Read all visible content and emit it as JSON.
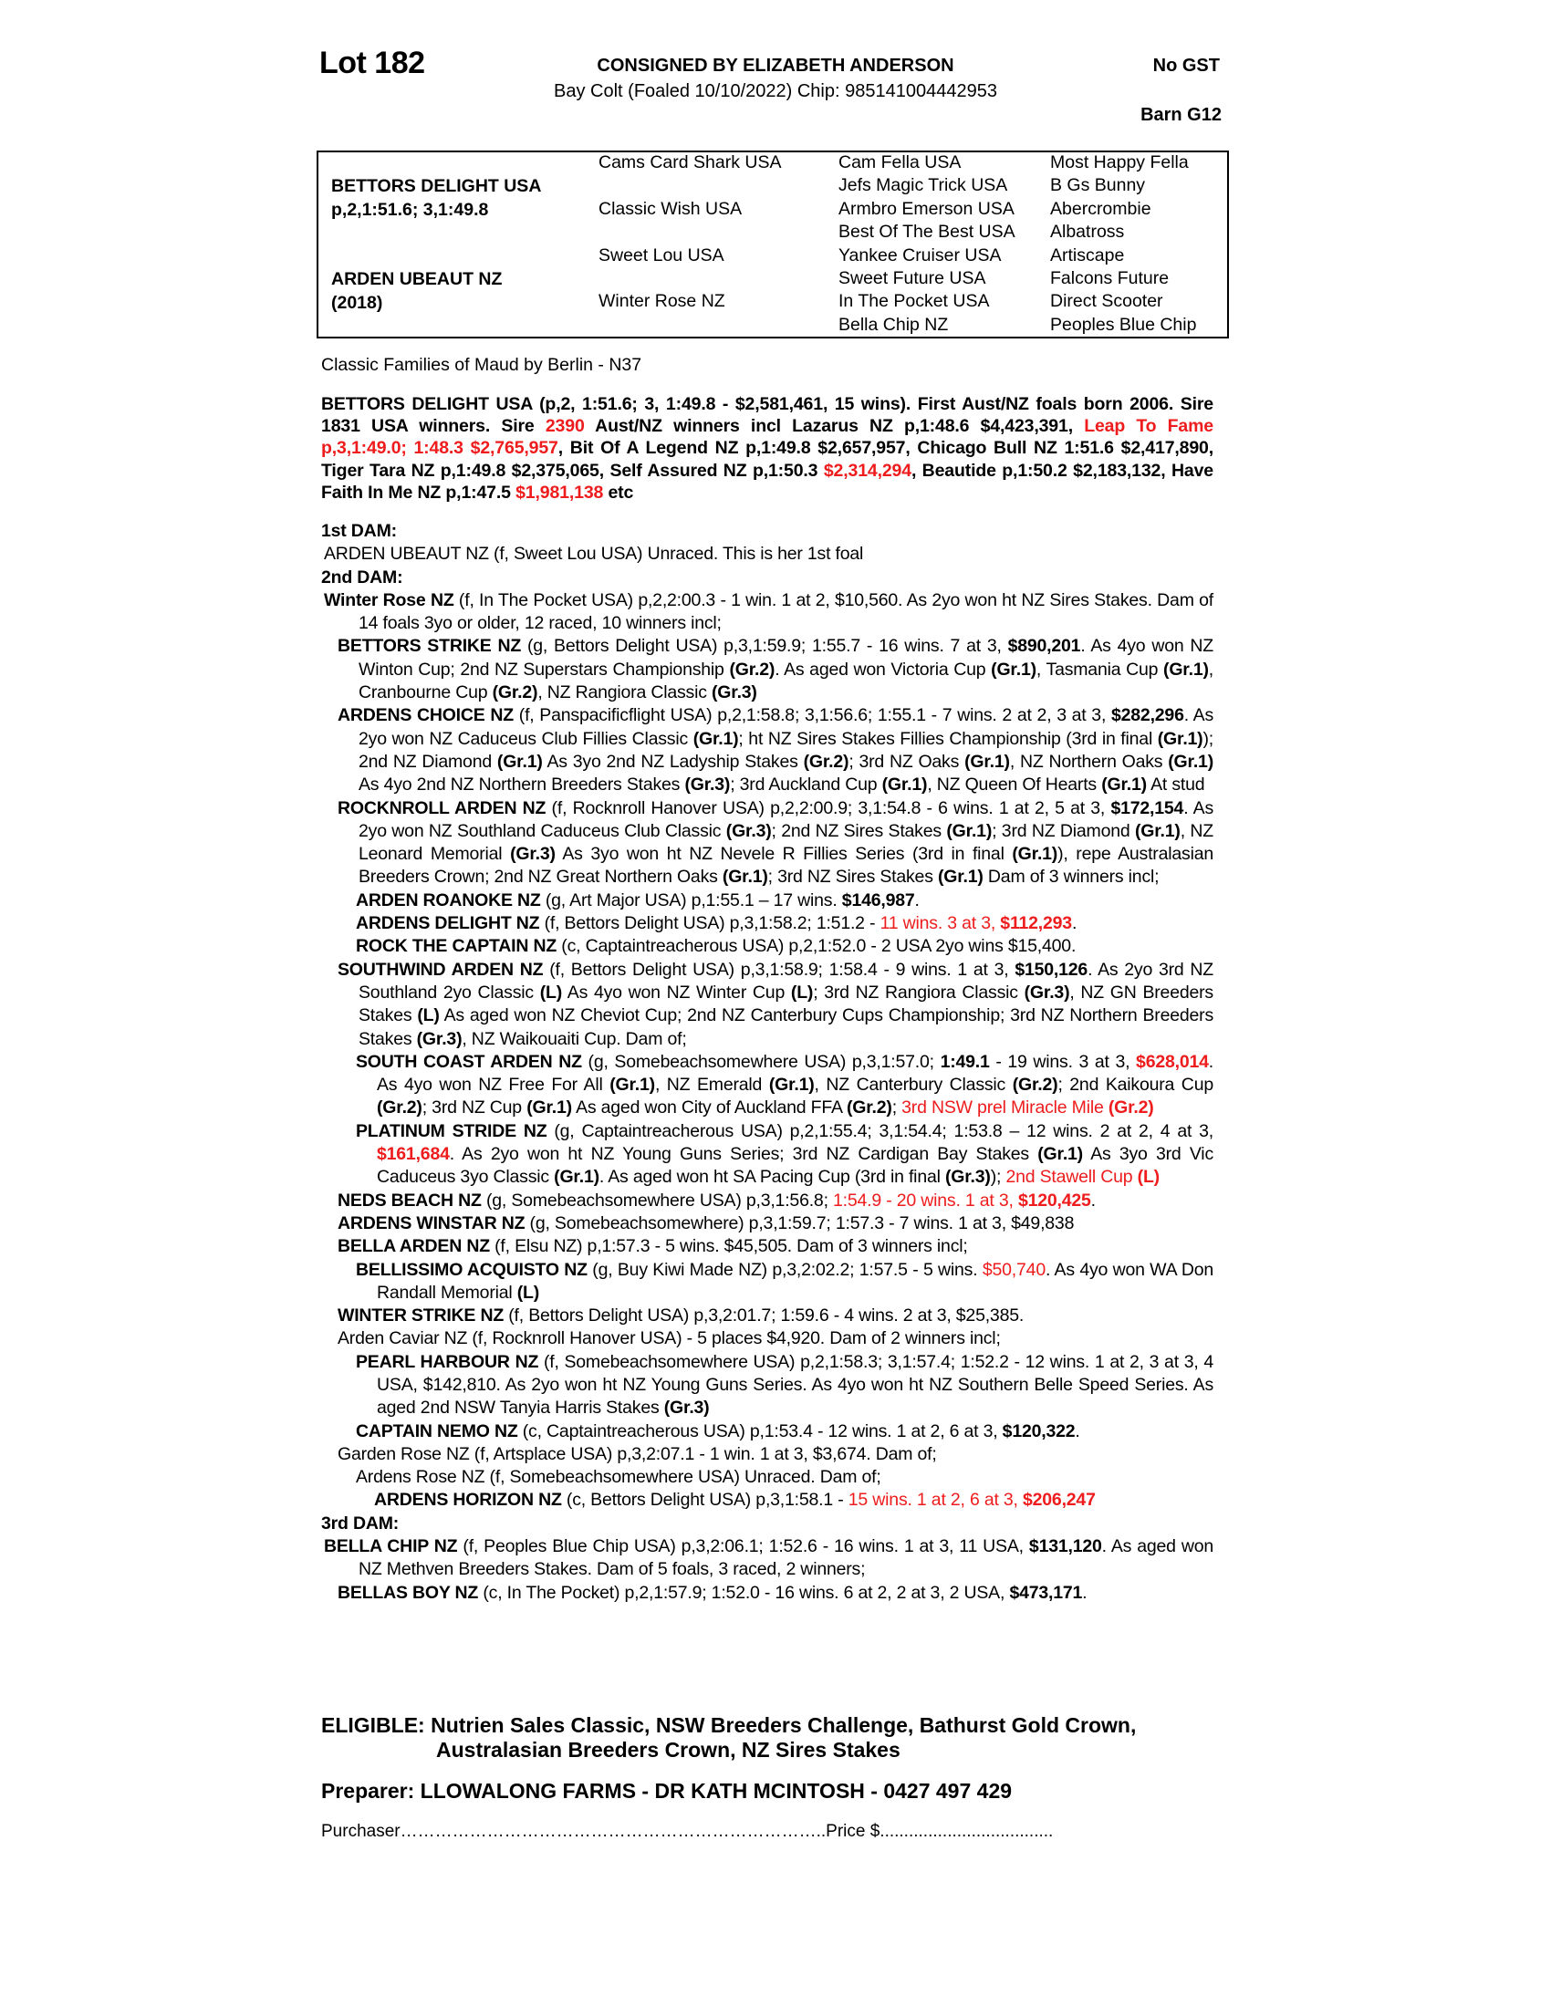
{
  "header": {
    "lot": "Lot 182",
    "consigned": "CONSIGNED BY ELIZABETH ANDERSON",
    "description": "Bay Colt (Foaled 10/10/2022) Chip: 985141004442953",
    "gst": "No GST",
    "barn": "Barn G12"
  },
  "pedigree": {
    "sire": "BETTORS DELIGHT USA",
    "sire_record": "p,2,1:51.6; 3,1:49.8",
    "dam": "ARDEN UBEAUT NZ",
    "dam_year": "(2018)",
    "gen2": [
      "Cams Card Shark USA",
      "Classic Wish USA",
      "Sweet Lou USA",
      "Winter Rose NZ"
    ],
    "gen3": [
      "Cam Fella USA",
      "Jefs Magic Trick USA",
      "Armbro Emerson USA",
      "Best Of The Best USA",
      "Yankee Cruiser USA",
      "Sweet Future USA",
      "In The Pocket USA",
      "Bella Chip NZ"
    ],
    "gen4": [
      "Most Happy Fella",
      "B Gs Bunny",
      "Abercrombie",
      "Albatross",
      "Artiscape",
      "Falcons Future",
      "Direct Scooter",
      "Peoples Blue Chip"
    ]
  },
  "family": "Classic Families of Maud by Berlin - N37",
  "colors": {
    "highlight": "#ee1c1c",
    "text": "#000000"
  },
  "sire_paragraph": [
    [
      "BETTORS DELIGHT USA (p,2, 1:51.6; 3, 1:49.8 - $2,581,461, 15 wins). First Aust/NZ foals born 2006. Sire 1831 USA winners. Sire ",
      "b"
    ],
    [
      "2390",
      "r"
    ],
    [
      " Aust/NZ winners incl Lazarus NZ p,1:48.6 $4,423,391, ",
      "b"
    ],
    [
      "Leap To Fame p,3,1:49.0; 1:48.3 $2,765,957",
      "r"
    ],
    [
      ", Bit Of A Legend NZ p,1:49.8 $2,657,957, Chicago Bull NZ 1:51.6 $2,417,890,  Tiger Tara NZ p,1:49.8 $2,375,065, Self Assured NZ p,1:50.3 ",
      "b"
    ],
    [
      "$2,314,294",
      "r"
    ],
    [
      ", Beautide p,1:50.2 $2,183,132, Have Faith In Me NZ p,1:47.5 ",
      "b"
    ],
    [
      "$1,981,138",
      "r"
    ],
    [
      " etc",
      "b"
    ]
  ],
  "dams": [
    {
      "level": "h",
      "segs": [
        [
          "1st DAM:",
          "b"
        ]
      ]
    },
    {
      "level": "a",
      "segs": [
        [
          "ARDEN UBEAUT NZ (f, Sweet Lou USA) Unraced. This is her 1st foal",
          ""
        ]
      ]
    },
    {
      "level": "h",
      "segs": [
        [
          "2nd DAM:",
          "b"
        ]
      ]
    },
    {
      "level": "a",
      "segs": [
        [
          "Winter Rose NZ",
          "b"
        ],
        [
          " (f, In The Pocket USA) p,2,2:00.3 - 1 win. 1 at 2, $10,560. As 2yo won ht NZ Sires Stakes. Dam of 14 foals 3yo or older, 12 raced, 10 winners incl;",
          ""
        ]
      ]
    },
    {
      "level": "b",
      "segs": [
        [
          "BETTORS STRIKE NZ",
          "b"
        ],
        [
          " (g, Bettors Delight USA) p,3,1:59.9; 1:55.7 - 16 wins. 7 at 3, ",
          ""
        ],
        [
          "$890,201",
          "b"
        ],
        [
          ". As 4yo won NZ Winton Cup; 2nd NZ Superstars Championship ",
          ""
        ],
        [
          "(Gr.2)",
          "b"
        ],
        [
          ". As aged won Victoria Cup ",
          ""
        ],
        [
          "(Gr.1)",
          "b"
        ],
        [
          ", Tasmania Cup ",
          ""
        ],
        [
          "(Gr.1)",
          "b"
        ],
        [
          ", Cranbourne Cup ",
          ""
        ],
        [
          "(Gr.2)",
          "b"
        ],
        [
          ", NZ Rangiora Classic ",
          ""
        ],
        [
          "(Gr.3)",
          "b"
        ]
      ]
    },
    {
      "level": "b",
      "segs": [
        [
          "ARDENS CHOICE NZ",
          "b"
        ],
        [
          " (f, Panspacificflight USA) p,2,1:58.8; 3,1:56.6; 1:55.1 - 7 wins. 2 at 2, 3 at 3, ",
          ""
        ],
        [
          "$282,296",
          "b"
        ],
        [
          ". As 2yo won NZ Caduceus Club Fillies Classic ",
          ""
        ],
        [
          "(Gr.1)",
          "b"
        ],
        [
          "; ht NZ Sires Stakes Fillies Championship (3rd in final ",
          ""
        ],
        [
          "(Gr.1)",
          "b"
        ],
        [
          "); 2nd NZ Diamond ",
          ""
        ],
        [
          "(Gr.1)",
          "b"
        ],
        [
          " As 3yo 2nd NZ Ladyship Stakes ",
          ""
        ],
        [
          "(Gr.2)",
          "b"
        ],
        [
          "; 3rd NZ Oaks ",
          ""
        ],
        [
          "(Gr.1)",
          "b"
        ],
        [
          ", NZ Northern Oaks ",
          ""
        ],
        [
          "(Gr.1)",
          "b"
        ],
        [
          " As 4yo 2nd NZ Northern Breeders Stakes ",
          ""
        ],
        [
          "(Gr.3)",
          "b"
        ],
        [
          "; 3rd Auckland Cup ",
          ""
        ],
        [
          "(Gr.1)",
          "b"
        ],
        [
          ", NZ Queen Of Hearts ",
          ""
        ],
        [
          "(Gr.1)",
          "b"
        ],
        [
          " At stud",
          ""
        ]
      ]
    },
    {
      "level": "b",
      "segs": [
        [
          "ROCKNROLL ARDEN NZ",
          "b"
        ],
        [
          " (f, Rocknroll Hanover USA) p,2,2:00.9; 3,1:54.8 - 6 wins. 1 at 2, 5 at 3, ",
          ""
        ],
        [
          "$172,154",
          "b"
        ],
        [
          ". As 2yo won NZ Southland Caduceus Club Classic ",
          ""
        ],
        [
          "(Gr.3)",
          "b"
        ],
        [
          "; 2nd NZ Sires Stakes ",
          ""
        ],
        [
          "(Gr.1)",
          "b"
        ],
        [
          "; 3rd NZ Diamond ",
          ""
        ],
        [
          "(Gr.1)",
          "b"
        ],
        [
          ", NZ Leonard Memorial ",
          ""
        ],
        [
          "(Gr.3)",
          "b"
        ],
        [
          " As 3yo won ht NZ Nevele R Fillies Series (3rd in final ",
          ""
        ],
        [
          "(Gr.1)",
          "b"
        ],
        [
          "), repe Australasian Breeders Crown; 2nd NZ Great Northern Oaks ",
          ""
        ],
        [
          "(Gr.1)",
          "b"
        ],
        [
          "; 3rd NZ Sires Stakes ",
          ""
        ],
        [
          "(Gr.1)",
          "b"
        ],
        [
          " Dam of 3 winners incl;",
          ""
        ]
      ]
    },
    {
      "level": "c",
      "segs": [
        [
          "ARDEN ROANOKE NZ",
          "b"
        ],
        [
          " (g, Art Major USA) p,1:55.1 – 17 wins. ",
          ""
        ],
        [
          "$146,987",
          "b"
        ],
        [
          ".",
          ""
        ]
      ]
    },
    {
      "level": "c",
      "segs": [
        [
          "ARDENS DELIGHT NZ",
          "b"
        ],
        [
          " (f, Bettors Delight USA) p,3,1:58.2; 1:51.2 - ",
          ""
        ],
        [
          "11 wins. 3 at 3, ",
          "r"
        ],
        [
          "$112,293",
          "rb"
        ],
        [
          ".",
          ""
        ]
      ]
    },
    {
      "level": "c",
      "segs": [
        [
          "ROCK THE CAPTAIN NZ",
          "b"
        ],
        [
          " (c, Captaintreacherous USA) p,2,1:52.0 - 2 USA 2yo wins $15,400.",
          ""
        ]
      ]
    },
    {
      "level": "b",
      "segs": [
        [
          "SOUTHWIND ARDEN NZ",
          "b"
        ],
        [
          " (f, Bettors Delight USA) p,3,1:58.9; 1:58.4 - 9 wins. 1 at 3, ",
          ""
        ],
        [
          "$150,126",
          "b"
        ],
        [
          ". As 2yo 3rd NZ Southland 2yo Classic ",
          ""
        ],
        [
          "(L)",
          "b"
        ],
        [
          " As 4yo won NZ Winter Cup ",
          ""
        ],
        [
          "(L)",
          "b"
        ],
        [
          "; 3rd NZ Rangiora Classic ",
          ""
        ],
        [
          "(Gr.3)",
          "b"
        ],
        [
          ", NZ GN Breeders Stakes ",
          ""
        ],
        [
          "(L)",
          "b"
        ],
        [
          " As aged won NZ Cheviot Cup; 2nd NZ Canterbury Cups Championship; 3rd NZ Northern Breeders Stakes ",
          ""
        ],
        [
          "(Gr.3)",
          "b"
        ],
        [
          ", NZ Waikouaiti Cup. Dam of;",
          ""
        ]
      ]
    },
    {
      "level": "c",
      "segs": [
        [
          "SOUTH COAST ARDEN NZ",
          "b"
        ],
        [
          " (g, Somebeachsomewhere USA) p,3,1:57.0; ",
          ""
        ],
        [
          "1:49.1",
          "b"
        ],
        [
          " - 19 wins. 3 at 3, ",
          ""
        ],
        [
          "$628,014",
          "rb"
        ],
        [
          ". As 4yo won NZ Free For All ",
          ""
        ],
        [
          "(Gr.1)",
          "b"
        ],
        [
          ", NZ Emerald ",
          ""
        ],
        [
          "(Gr.1)",
          "b"
        ],
        [
          ", NZ Canterbury Classic ",
          ""
        ],
        [
          "(Gr.2)",
          "b"
        ],
        [
          "; 2nd Kaikoura Cup ",
          ""
        ],
        [
          "(Gr.2)",
          "b"
        ],
        [
          "; 3rd NZ Cup ",
          ""
        ],
        [
          "(Gr.1)",
          "b"
        ],
        [
          " As aged won City of Auckland FFA ",
          ""
        ],
        [
          "(Gr.2)",
          "b"
        ],
        [
          "; ",
          ""
        ],
        [
          "3rd NSW prel Miracle Mile ",
          "r"
        ],
        [
          "(Gr.2)",
          "rb"
        ]
      ]
    },
    {
      "level": "c",
      "segs": [
        [
          "PLATINUM STRIDE NZ",
          "b"
        ],
        [
          " (g, Captaintreacherous USA) p,2,1:55.4; 3,1:54.4; 1:53.8 – 12 wins. 2 at 2, 4 at 3, ",
          ""
        ],
        [
          "$161,684",
          "rb"
        ],
        [
          ". As 2yo won ht NZ Young Guns Series; 3rd NZ Cardigan Bay Stakes ",
          ""
        ],
        [
          "(Gr.1)",
          "b"
        ],
        [
          " As 3yo 3rd Vic Caduceus 3yo Classic ",
          ""
        ],
        [
          "(Gr.1)",
          "b"
        ],
        [
          ". As aged won ht SA Pacing Cup (3rd in final ",
          ""
        ],
        [
          "(Gr.3)",
          "b"
        ],
        [
          "); ",
          ""
        ],
        [
          "2nd Stawell Cup ",
          "r"
        ],
        [
          "(L)",
          "rb"
        ]
      ]
    },
    {
      "level": "b",
      "segs": [
        [
          "NEDS BEACH NZ",
          "b"
        ],
        [
          " (g, Somebeachsomewhere USA) p,3,1:56.8; ",
          ""
        ],
        [
          "1:54.9 - 20 wins. 1 at 3, ",
          "r"
        ],
        [
          "$120,425",
          "rb"
        ],
        [
          ".",
          ""
        ]
      ]
    },
    {
      "level": "b",
      "segs": [
        [
          "ARDENS WINSTAR NZ",
          "b"
        ],
        [
          " (g, Somebeachsomewhere) p,3,1:59.7; 1:57.3 - 7 wins. 1 at 3, $49,838",
          ""
        ]
      ]
    },
    {
      "level": "b",
      "segs": [
        [
          "BELLA ARDEN NZ",
          "b"
        ],
        [
          " (f, Elsu NZ) p,1:57.3 - 5 wins. $45,505. Dam of 3 winners incl;",
          ""
        ]
      ]
    },
    {
      "level": "c",
      "segs": [
        [
          "BELLISSIMO ACQUISTO NZ",
          "b"
        ],
        [
          " (g, Buy Kiwi Made NZ) p,3,2:02.2; 1:57.5 - 5 wins. ",
          ""
        ],
        [
          "$50,740",
          "r"
        ],
        [
          ". As 4yo won WA Don Randall Memorial ",
          ""
        ],
        [
          "(L)",
          "b"
        ]
      ]
    },
    {
      "level": "b",
      "segs": [
        [
          "WINTER STRIKE NZ",
          "b"
        ],
        [
          " (f, Bettors Delight USA) p,3,2:01.7; 1:59.6 - 4 wins. 2 at 3, $25,385.",
          ""
        ]
      ]
    },
    {
      "level": "b",
      "segs": [
        [
          "Arden Caviar NZ (f, Rocknroll Hanover USA) - 5 places $4,920. Dam of 2 winners incl;",
          ""
        ]
      ]
    },
    {
      "level": "c",
      "segs": [
        [
          "PEARL HARBOUR NZ",
          "b"
        ],
        [
          " (f, Somebeachsomewhere USA) p,2,1:58.3; 3,1:57.4; 1:52.2 - 12 wins. 1 at 2, 3 at 3, 4 USA, $142,810. As 2yo won ht NZ Young Guns Series. As 4yo won ht NZ Southern Belle Speed Series. As aged 2nd NSW Tanyia Harris Stakes ",
          ""
        ],
        [
          "(Gr.3)",
          "b"
        ]
      ]
    },
    {
      "level": "c",
      "segs": [
        [
          "CAPTAIN NEMO NZ",
          "b"
        ],
        [
          " (c, Captaintreacherous USA) p,1:53.4 - 12 wins. 1 at 2, 6 at 3, ",
          ""
        ],
        [
          "$120,322",
          "b"
        ],
        [
          ".",
          ""
        ]
      ]
    },
    {
      "level": "b",
      "segs": [
        [
          "Garden Rose NZ (f, Artsplace USA) p,3,2:07.1 - 1 win. 1 at 3, $3,674. Dam of;",
          ""
        ]
      ]
    },
    {
      "level": "c",
      "segs": [
        [
          "Ardens Rose NZ (f, Somebeachsomewhere USA) Unraced. Dam of;",
          ""
        ]
      ]
    },
    {
      "level": "d",
      "segs": [
        [
          "ARDENS HORIZON NZ",
          "b"
        ],
        [
          " (c, Bettors Delight USA) p,3,1:58.1 - ",
          ""
        ],
        [
          "15 wins. 1 at 2, 6 at 3, ",
          "r"
        ],
        [
          "$206,247",
          "rb"
        ]
      ]
    },
    {
      "level": "h",
      "segs": [
        [
          "3rd DAM:",
          "b"
        ]
      ]
    },
    {
      "level": "a",
      "segs": [
        [
          "BELLA CHIP NZ",
          "b"
        ],
        [
          " (f, Peoples Blue Chip USA) p,3,2:06.1; 1:52.6 - 16 wins. 1 at 3, 11 USA, ",
          ""
        ],
        [
          "$131,120",
          "b"
        ],
        [
          ". As aged won NZ Methven Breeders Stakes. Dam of 5 foals, 3 raced, 2 winners;",
          ""
        ]
      ]
    },
    {
      "level": "b",
      "segs": [
        [
          "BELLAS BOY NZ",
          "b"
        ],
        [
          " (c, In The Pocket) p,2,1:57.9; 1:52.0 - 16 wins. 6 at 2, 2 at 3, 2 USA, ",
          ""
        ],
        [
          "$473,171",
          "b"
        ],
        [
          ".",
          ""
        ]
      ]
    }
  ],
  "eligible": {
    "line1": "ELIGIBLE: Nutrien Sales Classic, NSW Breeders Challenge, Bathurst Gold Crown,",
    "line2": "Australasian Breeders Crown, NZ Sires Stakes"
  },
  "preparer": "Preparer: LLOWALONG FARMS - DR KATH MCINTOSH - 0427 497 429",
  "purchaser": "Purchaser………………………………………………………………..Price $...................................."
}
